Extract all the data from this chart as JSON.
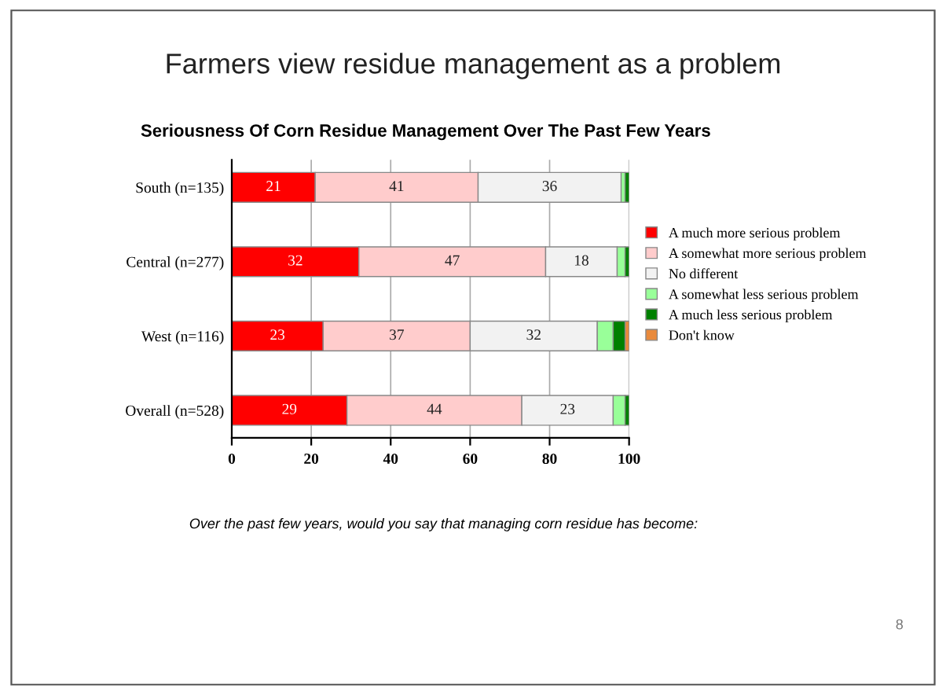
{
  "chart_data": {
    "type": "bar",
    "orientation": "horizontal",
    "stacked": true,
    "title": "Farmers view residue management as a problem",
    "subtitle": "Seriousness Of Corn Residue Management Over The Past Few Years",
    "categories": [
      "South (n=135)",
      "Central (n=277)",
      "West (n=116)",
      "Overall (n=528)"
    ],
    "series": [
      {
        "name": "A much more serious problem",
        "color": "#ff0000",
        "values": [
          21,
          32,
          23,
          29
        ],
        "value_labels": [
          "21",
          "32",
          "23",
          "29"
        ]
      },
      {
        "name": "A somewhat more serious problem",
        "color": "#ffcccc",
        "values": [
          41,
          47,
          37,
          44
        ],
        "value_labels": [
          "41",
          "47",
          "37",
          "44"
        ]
      },
      {
        "name": "No different",
        "color": "#f2f2f2",
        "values": [
          36,
          18,
          32,
          23
        ],
        "value_labels": [
          "36",
          "18",
          "32",
          "23"
        ]
      },
      {
        "name": "A somewhat less serious problem",
        "color": "#99ff99",
        "values": [
          1,
          2,
          4,
          3
        ]
      },
      {
        "name": "A much less serious problem",
        "color": "#008000",
        "values": [
          1,
          1,
          3,
          1
        ]
      },
      {
        "name": "Don't know",
        "color": "#e98a3c",
        "values": [
          null,
          null,
          1,
          null
        ]
      }
    ],
    "xlim": [
      0,
      100
    ],
    "xticks": [
      0,
      20,
      40,
      60,
      80,
      100
    ],
    "grid": "x",
    "legend": "right",
    "annotations": [
      "Over the past few years, would you say that managing corn residue has become:",
      "8"
    ]
  }
}
